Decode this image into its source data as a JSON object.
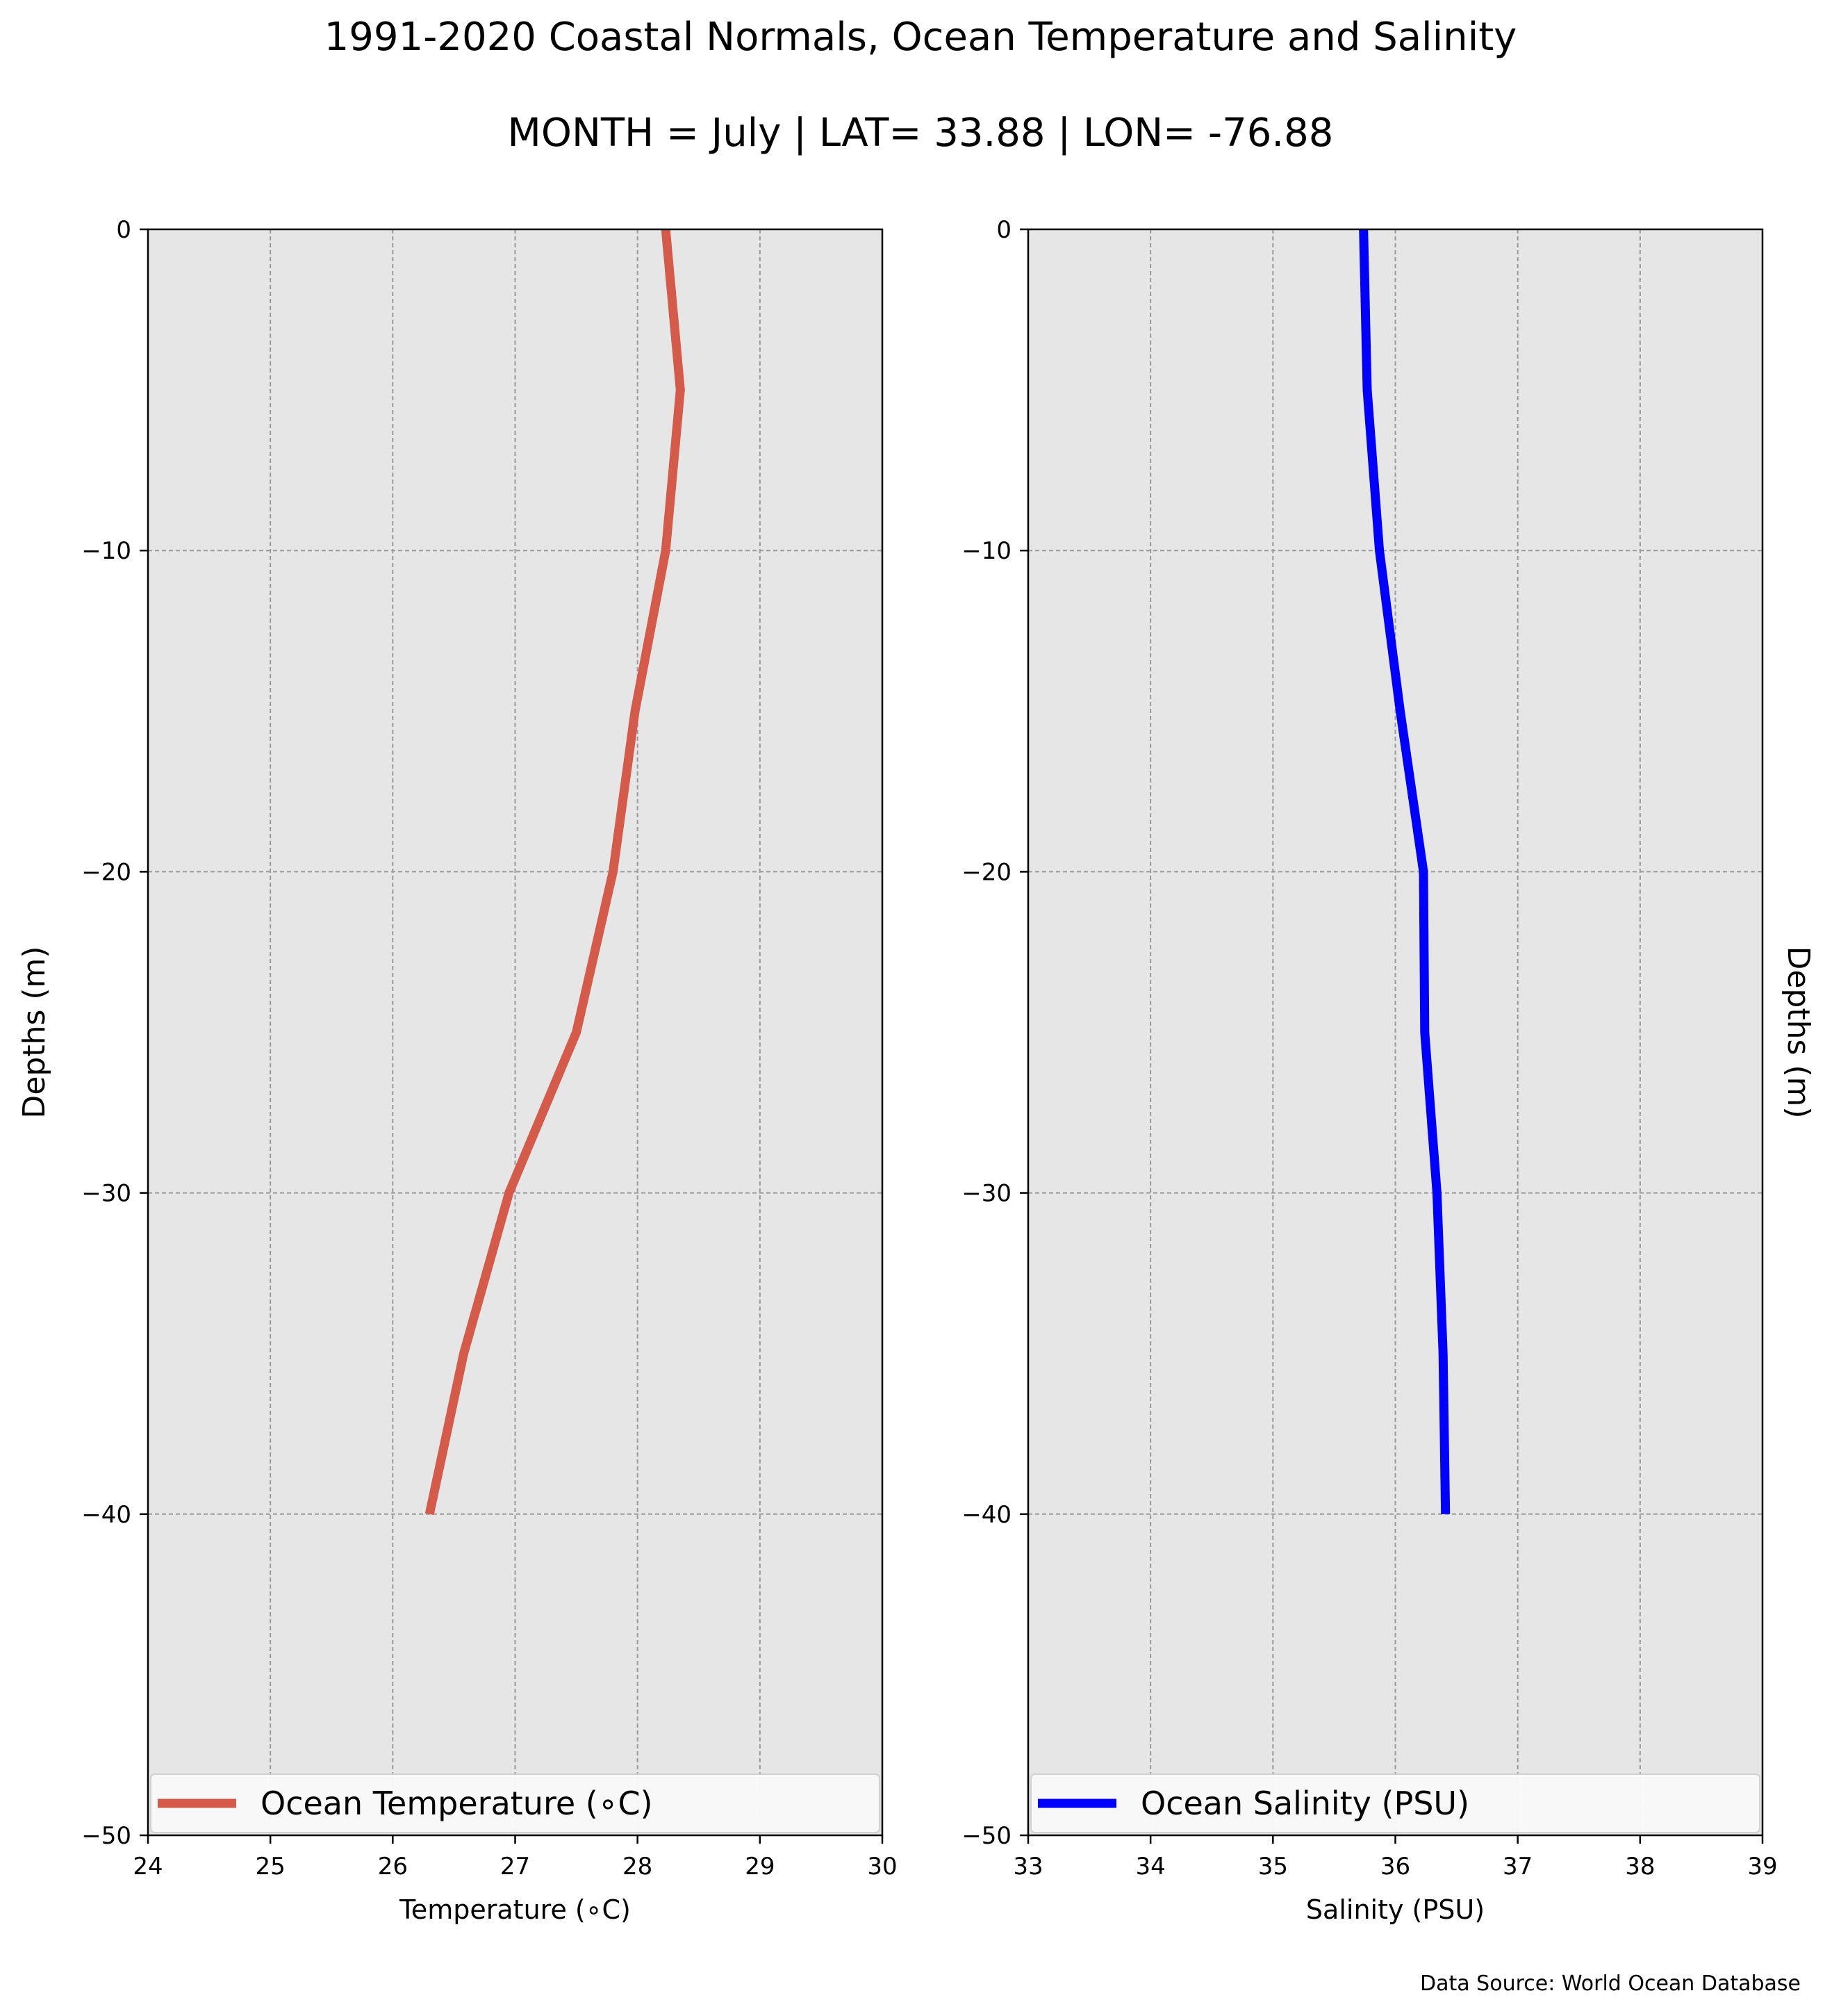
{
  "figure": {
    "title": "1991-2020 Coastal Normals, Ocean Temperature and Salinity",
    "subtitle": "MONTH = July | LAT= 33.88 | LON= -76.88",
    "source": "Data Source: World Ocean Database"
  },
  "chart_data": [
    {
      "type": "line",
      "xlabel": "Temperature (∘C)",
      "ylabel": "Depths (m)",
      "ylabel_side": "left",
      "xlim": [
        24,
        30
      ],
      "ylim": [
        -50,
        0
      ],
      "xticks": [
        "24",
        "25",
        "26",
        "27",
        "28",
        "29",
        "30"
      ],
      "yticks": [
        "0",
        "−10",
        "−20",
        "−30",
        "−40",
        "−50"
      ],
      "grid": true,
      "legend_position": "lower-center",
      "series": [
        {
          "name": "Ocean Temperature (∘C)",
          "color": "#d45a4a",
          "x": [
            28.23,
            28.35,
            28.23,
            27.98,
            27.8,
            27.5,
            26.95,
            26.58,
            26.3
          ],
          "y": [
            0,
            -5,
            -10,
            -15,
            -20,
            -25,
            -30,
            -35,
            -40
          ]
        }
      ]
    },
    {
      "type": "line",
      "xlabel": "Salinity (PSU)",
      "ylabel": "Depths (m)",
      "ylabel_side": "right",
      "xlim": [
        33,
        39
      ],
      "ylim": [
        -50,
        0
      ],
      "xticks": [
        "33",
        "34",
        "35",
        "36",
        "37",
        "38",
        "39"
      ],
      "yticks": [
        "0",
        "−10",
        "−20",
        "−30",
        "−40",
        "−50"
      ],
      "grid": true,
      "legend_position": "lower-center",
      "series": [
        {
          "name": "Ocean Salinity (PSU)",
          "color": "#0000ff",
          "x": [
            35.74,
            35.77,
            35.87,
            36.04,
            36.23,
            36.24,
            36.34,
            36.39,
            36.41
          ],
          "y": [
            0,
            -5,
            -10,
            -15,
            -20,
            -25,
            -30,
            -35,
            -40
          ]
        }
      ]
    }
  ]
}
